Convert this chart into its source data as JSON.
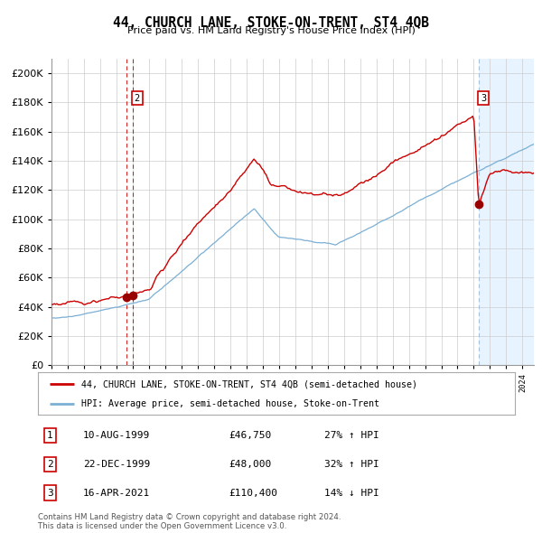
{
  "title": "44, CHURCH LANE, STOKE-ON-TRENT, ST4 4QB",
  "subtitle": "Price paid vs. HM Land Registry's House Price Index (HPI)",
  "ylim": [
    0,
    210000
  ],
  "yticks": [
    0,
    20000,
    40000,
    60000,
    80000,
    100000,
    120000,
    140000,
    160000,
    180000,
    200000
  ],
  "xlim_start": 1995.0,
  "xlim_end": 2024.7,
  "property_color": "#cc0000",
  "hpi_color": "#7bafd4",
  "shaded_region_color": "#ddeeff",
  "dashed_color_1999": "#cc0000",
  "dashed_color_2021": "#9ab8d8",
  "marker_color": "#990000",
  "t1_yr": 1999.604,
  "t2_yr": 1999.979,
  "t3_yr": 2021.292,
  "t1_price": 46750,
  "t2_price": 48000,
  "t3_price": 110400,
  "footer_line1": "Contains HM Land Registry data © Crown copyright and database right 2024.",
  "footer_line2": "This data is licensed under the Open Government Licence v3.0.",
  "legend_property": "44, CHURCH LANE, STOKE-ON-TRENT, ST4 4QB (semi-detached house)",
  "legend_hpi": "HPI: Average price, semi-detached house, Stoke-on-Trent",
  "table_data": [
    {
      "num": "1",
      "date": "10-AUG-1999",
      "price": "£46,750",
      "hpi": "27% ↑ HPI"
    },
    {
      "num": "2",
      "date": "22-DEC-1999",
      "price": "£48,000",
      "hpi": "32% ↑ HPI"
    },
    {
      "num": "3",
      "date": "16-APR-2021",
      "price": "£110,400",
      "hpi": "14% ↓ HPI"
    }
  ],
  "background_color": "#ffffff",
  "grid_color": "#cccccc"
}
